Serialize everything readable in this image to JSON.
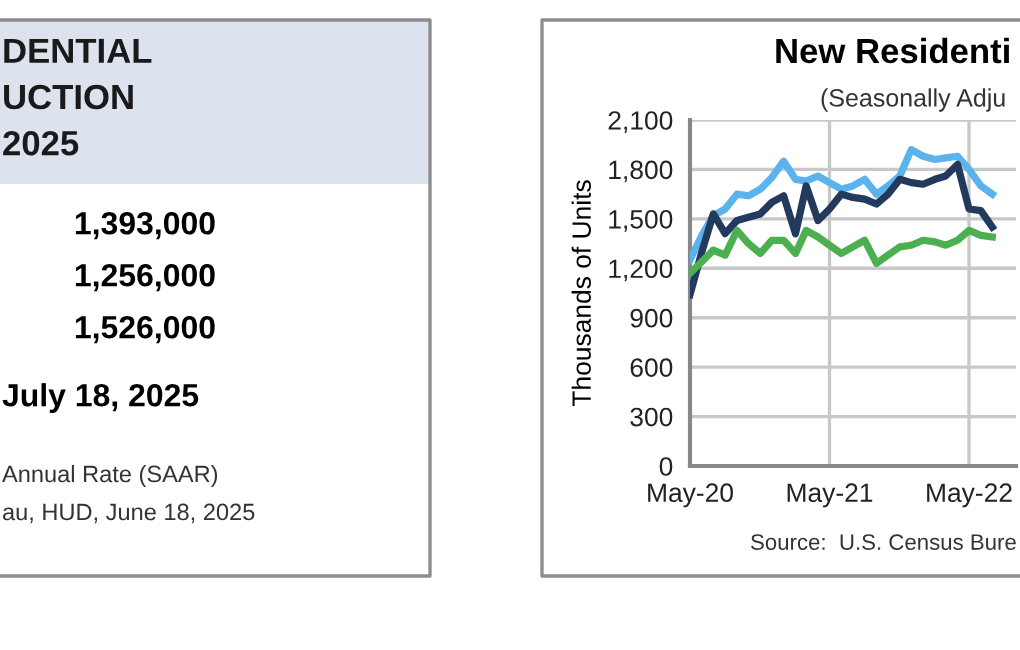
{
  "chart_data": [
    {
      "type": "other",
      "title": "DENTIAL\nUCTION\n2025",
      "annotations": [
        "1,393,000",
        "1,256,000",
        "1,526,000",
        "July 18, 2025",
        "Annual Rate (SAAR)",
        "au, HUD, June 18, 2025"
      ]
    },
    {
      "type": "line",
      "title": "New Residenti",
      "subtitle": "(Seasonally Adju",
      "ylabel": "Thousands of Units",
      "annotations": [
        "Source:  U.S. Census Bure"
      ],
      "x": [
        "2020-05",
        "2020-06",
        "2020-07",
        "2020-08",
        "2020-09",
        "2020-10",
        "2020-11",
        "2020-12",
        "2021-01",
        "2021-02",
        "2021-03",
        "2021-04",
        "2021-05",
        "2021-06",
        "2021-07",
        "2021-08",
        "2021-09",
        "2021-10",
        "2021-11",
        "2021-12",
        "2022-01",
        "2022-02",
        "2022-03",
        "2022-04",
        "2022-05",
        "2022-06",
        "2022-07"
      ],
      "series": [
        {
          "color": "#5bb3ee",
          "values": [
            1250,
            1400,
            1520,
            1560,
            1650,
            1640,
            1680,
            1750,
            1850,
            1740,
            1730,
            1760,
            1720,
            1680,
            1700,
            1740,
            1650,
            1700,
            1760,
            1920,
            1880,
            1860,
            1870,
            1880,
            1800,
            1700,
            1650
          ]
        },
        {
          "color": "#223a5e",
          "values": [
            1040,
            1300,
            1530,
            1410,
            1490,
            1510,
            1530,
            1600,
            1640,
            1410,
            1700,
            1490,
            1560,
            1650,
            1630,
            1620,
            1590,
            1650,
            1740,
            1720,
            1710,
            1740,
            1760,
            1830,
            1560,
            1550,
            1450
          ]
        },
        {
          "color": "#4caf50",
          "values": [
            1170,
            1240,
            1310,
            1280,
            1430,
            1350,
            1290,
            1370,
            1370,
            1290,
            1430,
            1390,
            1340,
            1290,
            1330,
            1370,
            1230,
            1280,
            1330,
            1340,
            1370,
            1360,
            1340,
            1370,
            1430,
            1400,
            1390
          ]
        }
      ],
      "xlim": [
        "2020-05",
        "2022-09"
      ],
      "xticks": [
        {
          "value": "2020-05",
          "label": "May-20"
        },
        {
          "value": "2021-05",
          "label": "May-21"
        },
        {
          "value": "2022-05",
          "label": "May-22"
        }
      ],
      "ylim": [
        0,
        2100
      ],
      "yticks": [
        0,
        300,
        600,
        900,
        {
          "value": 1200,
          "label": "1,200"
        },
        {
          "value": 1500,
          "label": "1,500"
        },
        {
          "value": 1800,
          "label": "1,800"
        },
        {
          "value": 2100,
          "label": "2,100"
        }
      ],
      "grid": true,
      "marker": "none",
      "line_style": "solid"
    }
  ]
}
